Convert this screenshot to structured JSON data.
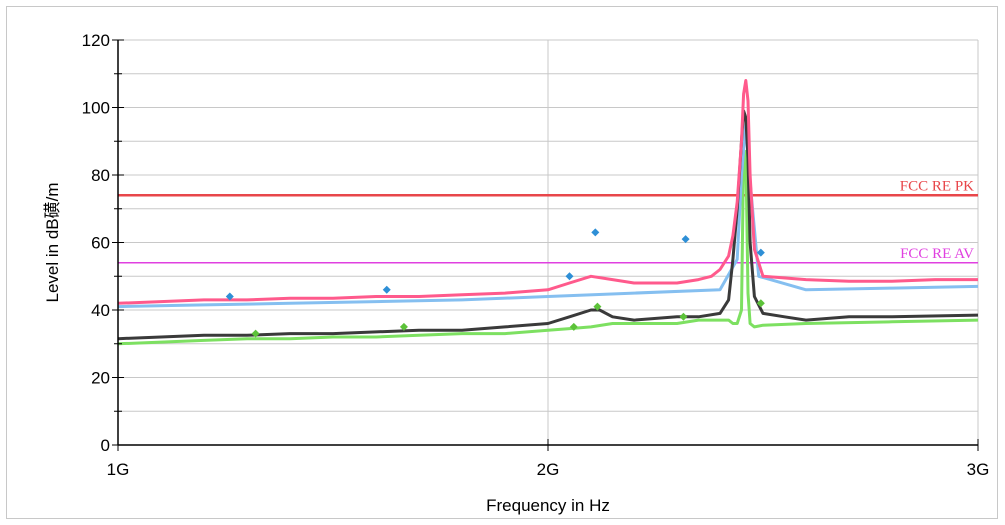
{
  "chart_data": {
    "type": "line",
    "xlabel": "Frequency in Hz",
    "ylabel": "Level in dB磺/m",
    "xlim": [
      1000,
      3000
    ],
    "ylim": [
      0,
      120
    ],
    "x_scale": "linear",
    "grid": true,
    "y_ticks": [
      0,
      20,
      40,
      60,
      80,
      100,
      120
    ],
    "y_tick_labels": [
      "0",
      "20",
      "40",
      "60",
      "80",
      "100",
      "120"
    ],
    "x_ticks": [
      1000,
      2000,
      3000
    ],
    "x_tick_labels": [
      "1G",
      "2G",
      "3G"
    ],
    "limit_lines": [
      {
        "name": "FCC RE PK",
        "value": 74,
        "color": "#e8464a"
      },
      {
        "name": "FCC RE AV",
        "value": 54,
        "color": "#e040e0"
      }
    ],
    "series": [
      {
        "key": "pk_horizontal",
        "color": "#ff5a8c",
        "x": [
          1000,
          1100,
          1200,
          1300,
          1400,
          1500,
          1600,
          1700,
          1800,
          1900,
          2000,
          2050,
          2100,
          2150,
          2200,
          2300,
          2350,
          2380,
          2400,
          2420,
          2430,
          2440,
          2450,
          2455,
          2460,
          2465,
          2470,
          2480,
          2500,
          2600,
          2700,
          2800,
          2900,
          3000
        ],
        "values": [
          42,
          42.5,
          43,
          43,
          43.5,
          43.5,
          44,
          44,
          44.5,
          45,
          46,
          48,
          50,
          49,
          48,
          48,
          49,
          50,
          52,
          56,
          62,
          72,
          90,
          104,
          108,
          102,
          80,
          58,
          50,
          49,
          48.5,
          48.5,
          49,
          49
        ]
      },
      {
        "key": "pk_vertical",
        "color": "#85bff0",
        "x": [
          1000,
          1200,
          1400,
          1600,
          1800,
          2000,
          2200,
          2400,
          2440,
          2450,
          2460,
          2470,
          2490,
          2600,
          2800,
          3000
        ],
        "values": [
          41,
          41.5,
          42,
          42.5,
          43,
          44,
          45,
          46,
          55,
          80,
          95,
          78,
          50,
          46,
          46.5,
          47
        ]
      },
      {
        "key": "av_horizontal",
        "color": "#3a3a3a",
        "x": [
          1000,
          1100,
          1200,
          1300,
          1400,
          1500,
          1600,
          1700,
          1800,
          1900,
          2000,
          2050,
          2100,
          2120,
          2150,
          2200,
          2300,
          2350,
          2400,
          2420,
          2430,
          2440,
          2450,
          2455,
          2460,
          2465,
          2470,
          2480,
          2500,
          2550,
          2600,
          2700,
          2800,
          3000
        ],
        "values": [
          31.5,
          32,
          32.5,
          32.5,
          33,
          33,
          33.5,
          34,
          34,
          35,
          36,
          38,
          40,
          40,
          38,
          37,
          38,
          38,
          39,
          43,
          55,
          70,
          90,
          99,
          97,
          85,
          60,
          44,
          39,
          38,
          37,
          38,
          38,
          38.5
        ]
      },
      {
        "key": "av_vertical",
        "color": "#7de061",
        "x": [
          1000,
          1100,
          1200,
          1300,
          1400,
          1500,
          1600,
          1700,
          1800,
          1900,
          2000,
          2050,
          2100,
          2150,
          2200,
          2300,
          2350,
          2380,
          2400,
          2420,
          2430,
          2440,
          2450,
          2455,
          2460,
          2465,
          2470,
          2480,
          2500,
          2600,
          2800,
          3000
        ],
        "values": [
          30,
          30.5,
          31,
          31.5,
          31.5,
          32,
          32,
          32.5,
          33,
          33,
          34,
          34.5,
          35,
          36,
          36,
          36,
          37,
          37,
          37,
          37,
          36,
          36,
          40,
          86,
          87,
          45,
          36,
          35,
          35.5,
          36,
          36.5,
          37
        ]
      }
    ],
    "markers": [
      {
        "x": 1260,
        "y": 44,
        "color": "#2e8fd6"
      },
      {
        "x": 1625,
        "y": 46,
        "color": "#2e8fd6"
      },
      {
        "x": 2050,
        "y": 50,
        "color": "#2e8fd6"
      },
      {
        "x": 2110,
        "y": 63,
        "color": "#2e8fd6"
      },
      {
        "x": 2320,
        "y": 61,
        "color": "#2e8fd6"
      },
      {
        "x": 2495,
        "y": 57,
        "color": "#2e8fd6"
      },
      {
        "x": 1320,
        "y": 33,
        "color": "#5cc239"
      },
      {
        "x": 1665,
        "y": 35,
        "color": "#5cc239"
      },
      {
        "x": 2060,
        "y": 35,
        "color": "#5cc239"
      },
      {
        "x": 2115,
        "y": 41,
        "color": "#5cc239"
      },
      {
        "x": 2315,
        "y": 38,
        "color": "#5cc239"
      },
      {
        "x": 2495,
        "y": 42,
        "color": "#5cc239"
      }
    ]
  }
}
